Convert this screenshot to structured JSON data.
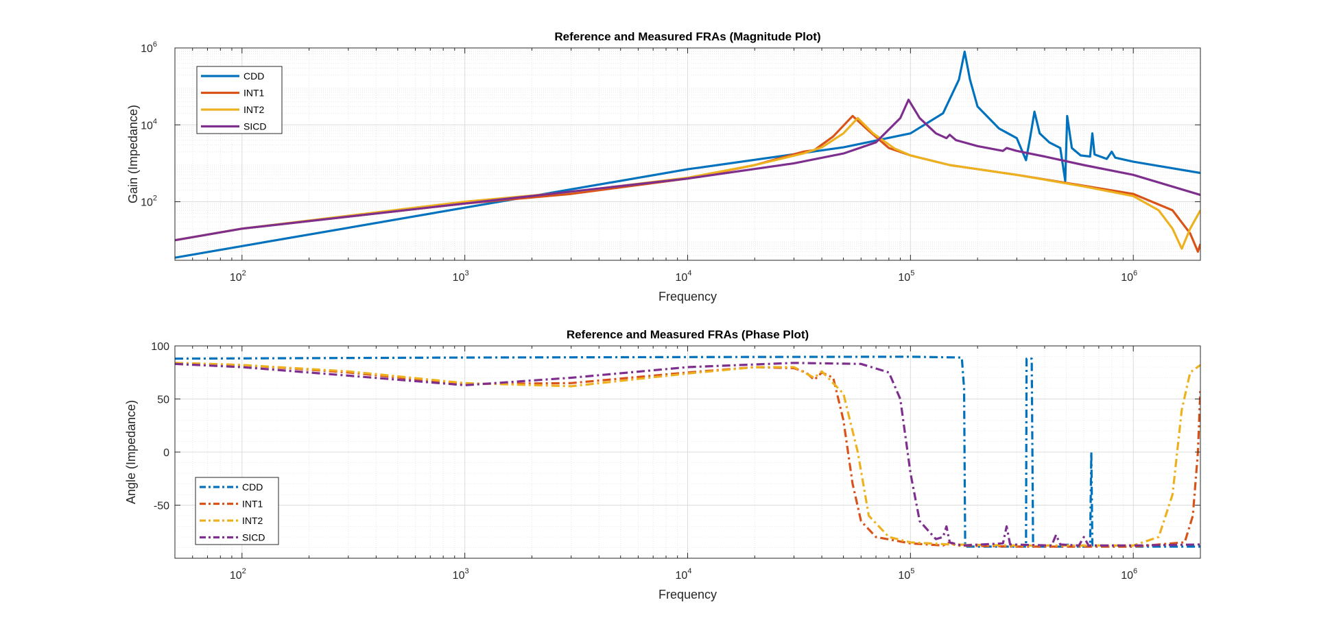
{
  "chart_data": [
    {
      "type": "line",
      "title": "Reference and Measured FRAs (Magnitude Plot)",
      "xlabel": "Frequency",
      "ylabel": "Gain (Impedance)",
      "xscale": "log",
      "yscale": "log",
      "xlim": [
        50,
        2000000
      ],
      "ylim": [
        3,
        1000000
      ],
      "grid": true,
      "legend_position": "top-left",
      "x_ticks": [
        {
          "base": "10",
          "exp": "2",
          "value": 100
        },
        {
          "base": "10",
          "exp": "3",
          "value": 1000
        },
        {
          "base": "10",
          "exp": "4",
          "value": 10000
        },
        {
          "base": "10",
          "exp": "5",
          "value": 100000
        },
        {
          "base": "10",
          "exp": "6",
          "value": 1000000
        }
      ],
      "y_ticks": [
        {
          "base": "10",
          "exp": "2",
          "value": 100
        },
        {
          "base": "10",
          "exp": "4",
          "value": 10000
        },
        {
          "base": "10",
          "exp": "6",
          "value": 1000000
        }
      ],
      "series": [
        {
          "name": "CDD",
          "color": "#0072BD",
          "dash": "solid",
          "points": [
            [
              50,
              3.5
            ],
            [
              100,
              7
            ],
            [
              1000,
              70
            ],
            [
              10000,
              700
            ],
            [
              50000,
              2600
            ],
            [
              100000,
              6000
            ],
            [
              140000,
              20000
            ],
            [
              165000,
              150000
            ],
            [
              175000,
              800000
            ],
            [
              185000,
              150000
            ],
            [
              200000,
              30000
            ],
            [
              250000,
              8000
            ],
            [
              300000,
              4500
            ],
            [
              330000,
              1200
            ],
            [
              345000,
              5000
            ],
            [
              360000,
              22000
            ],
            [
              380000,
              6000
            ],
            [
              420000,
              3500
            ],
            [
              470000,
              2500
            ],
            [
              495000,
              350
            ],
            [
              505000,
              17000
            ],
            [
              530000,
              2500
            ],
            [
              580000,
              1600
            ],
            [
              640000,
              1500
            ],
            [
              655000,
              6000
            ],
            [
              670000,
              1700
            ],
            [
              760000,
              1300
            ],
            [
              800000,
              2000
            ],
            [
              830000,
              1400
            ],
            [
              1000000,
              1100
            ],
            [
              2000000,
              560
            ]
          ]
        },
        {
          "name": "INT1",
          "color": "#D95319",
          "dash": "solid",
          "points": [
            [
              50,
              10
            ],
            [
              100,
              20
            ],
            [
              1000,
              90
            ],
            [
              3000,
              160
            ],
            [
              10000,
              400
            ],
            [
              20000,
              900
            ],
            [
              33000,
              2000
            ],
            [
              37000,
              2200
            ],
            [
              45000,
              5000
            ],
            [
              55000,
              17000
            ],
            [
              65000,
              7000
            ],
            [
              80000,
              2500
            ],
            [
              100000,
              1600
            ],
            [
              150000,
              900
            ],
            [
              300000,
              500
            ],
            [
              600000,
              260
            ],
            [
              1000000,
              160
            ],
            [
              1500000,
              60
            ],
            [
              1800000,
              15
            ],
            [
              1950000,
              5
            ],
            [
              2000000,
              8
            ]
          ]
        },
        {
          "name": "INT2",
          "color": "#EDB120",
          "dash": "solid",
          "points": [
            [
              50,
              10
            ],
            [
              100,
              20
            ],
            [
              1000,
              100
            ],
            [
              3000,
              180
            ],
            [
              10000,
              420
            ],
            [
              20000,
              900
            ],
            [
              33000,
              1800
            ],
            [
              40000,
              2600
            ],
            [
              50000,
              6000
            ],
            [
              58000,
              15000
            ],
            [
              68000,
              6000
            ],
            [
              85000,
              2400
            ],
            [
              100000,
              1600
            ],
            [
              150000,
              900
            ],
            [
              300000,
              500
            ],
            [
              600000,
              250
            ],
            [
              1000000,
              140
            ],
            [
              1300000,
              60
            ],
            [
              1500000,
              20
            ],
            [
              1650000,
              6
            ],
            [
              1800000,
              20
            ],
            [
              2000000,
              60
            ]
          ]
        },
        {
          "name": "SICD",
          "color": "#7E2F8E",
          "dash": "solid",
          "points": [
            [
              50,
              10
            ],
            [
              100,
              20
            ],
            [
              1000,
              90
            ],
            [
              10000,
              400
            ],
            [
              30000,
              1000
            ],
            [
              50000,
              1800
            ],
            [
              70000,
              3500
            ],
            [
              90000,
              15000
            ],
            [
              98000,
              45000
            ],
            [
              110000,
              15000
            ],
            [
              130000,
              6000
            ],
            [
              145000,
              4500
            ],
            [
              150000,
              5500
            ],
            [
              160000,
              4000
            ],
            [
              200000,
              2800
            ],
            [
              260000,
              2100
            ],
            [
              270000,
              2500
            ],
            [
              300000,
              2100
            ],
            [
              400000,
              1500
            ],
            [
              600000,
              900
            ],
            [
              1000000,
              500
            ],
            [
              2000000,
              150
            ]
          ]
        }
      ]
    },
    {
      "type": "line",
      "title": "Reference and Measured FRAs (Phase Plot)",
      "xlabel": "Frequency",
      "ylabel": "Angle (Impedance)",
      "xscale": "log",
      "yscale": "linear",
      "xlim": [
        50,
        2000000
      ],
      "ylim": [
        -100,
        100
      ],
      "grid": true,
      "legend_position": "bottom-left",
      "x_ticks": [
        {
          "base": "10",
          "exp": "2",
          "value": 100
        },
        {
          "base": "10",
          "exp": "3",
          "value": 1000
        },
        {
          "base": "10",
          "exp": "4",
          "value": 10000
        },
        {
          "base": "10",
          "exp": "5",
          "value": 100000
        },
        {
          "base": "10",
          "exp": "6",
          "value": 1000000
        }
      ],
      "y_ticks": [
        {
          "label": "100",
          "value": 100
        },
        {
          "label": "50",
          "value": 50
        },
        {
          "label": "0",
          "value": 0
        },
        {
          "label": "-50",
          "value": -50
        }
      ],
      "series": [
        {
          "name": "CDD",
          "color": "#0072BD",
          "dash": "dashdot",
          "points": [
            [
              50,
              88
            ],
            [
              1000,
              89
            ],
            [
              10000,
              89.5
            ],
            [
              100000,
              89.8
            ],
            [
              170000,
              89
            ],
            [
              174000,
              60
            ],
            [
              176000,
              -89
            ],
            [
              330000,
              -89
            ],
            [
              332000,
              88
            ],
            [
              350000,
              88
            ],
            [
              355000,
              -89
            ],
            [
              500000,
              -89
            ],
            [
              505000,
              -85
            ],
            [
              510000,
              -89
            ],
            [
              640000,
              -89
            ],
            [
              648000,
              0
            ],
            [
              655000,
              -89
            ],
            [
              1000000,
              -89
            ],
            [
              2000000,
              -89
            ]
          ]
        },
        {
          "name": "INT1",
          "color": "#D95319",
          "dash": "dashdot",
          "points": [
            [
              50,
              84
            ],
            [
              100,
              82
            ],
            [
              300,
              75
            ],
            [
              1000,
              64
            ],
            [
              3000,
              65
            ],
            [
              10000,
              75
            ],
            [
              20000,
              80
            ],
            [
              30000,
              79
            ],
            [
              34000,
              75
            ],
            [
              37000,
              68
            ],
            [
              40000,
              75
            ],
            [
              45000,
              70
            ],
            [
              50000,
              30
            ],
            [
              55000,
              -30
            ],
            [
              60000,
              -65
            ],
            [
              70000,
              -80
            ],
            [
              100000,
              -86
            ],
            [
              140000,
              -88
            ],
            [
              150000,
              -85
            ],
            [
              160000,
              -88
            ],
            [
              300000,
              -89
            ],
            [
              1000000,
              -89
            ],
            [
              1700000,
              -85
            ],
            [
              1850000,
              -60
            ],
            [
              1950000,
              0
            ],
            [
              2000000,
              60
            ]
          ]
        },
        {
          "name": "INT2",
          "color": "#EDB120",
          "dash": "dashdot",
          "points": [
            [
              50,
              84
            ],
            [
              100,
              82
            ],
            [
              300,
              76
            ],
            [
              1000,
              65
            ],
            [
              3000,
              62
            ],
            [
              10000,
              74
            ],
            [
              20000,
              80
            ],
            [
              30000,
              80
            ],
            [
              37000,
              70
            ],
            [
              40000,
              76
            ],
            [
              50000,
              55
            ],
            [
              58000,
              0
            ],
            [
              65000,
              -60
            ],
            [
              80000,
              -80
            ],
            [
              100000,
              -85
            ],
            [
              150000,
              -87
            ],
            [
              300000,
              -88
            ],
            [
              1000000,
              -88
            ],
            [
              1300000,
              -80
            ],
            [
              1500000,
              -40
            ],
            [
              1650000,
              40
            ],
            [
              1800000,
              75
            ],
            [
              2000000,
              82
            ]
          ]
        },
        {
          "name": "SICD",
          "color": "#7E2F8E",
          "dash": "dashdot",
          "points": [
            [
              50,
              83
            ],
            [
              100,
              80
            ],
            [
              300,
              72
            ],
            [
              1000,
              63
            ],
            [
              3000,
              70
            ],
            [
              10000,
              80
            ],
            [
              30000,
              84
            ],
            [
              60000,
              83
            ],
            [
              80000,
              75
            ],
            [
              90000,
              50
            ],
            [
              100000,
              -20
            ],
            [
              110000,
              -65
            ],
            [
              130000,
              -82
            ],
            [
              140000,
              -80
            ],
            [
              145000,
              -70
            ],
            [
              150000,
              -85
            ],
            [
              170000,
              -88
            ],
            [
              260000,
              -86
            ],
            [
              270000,
              -70
            ],
            [
              280000,
              -87
            ],
            [
              430000,
              -88
            ],
            [
              450000,
              -78
            ],
            [
              470000,
              -87
            ],
            [
              570000,
              -88
            ],
            [
              600000,
              -80
            ],
            [
              630000,
              -88
            ],
            [
              1000000,
              -88
            ],
            [
              2000000,
              -87
            ]
          ]
        }
      ]
    }
  ]
}
